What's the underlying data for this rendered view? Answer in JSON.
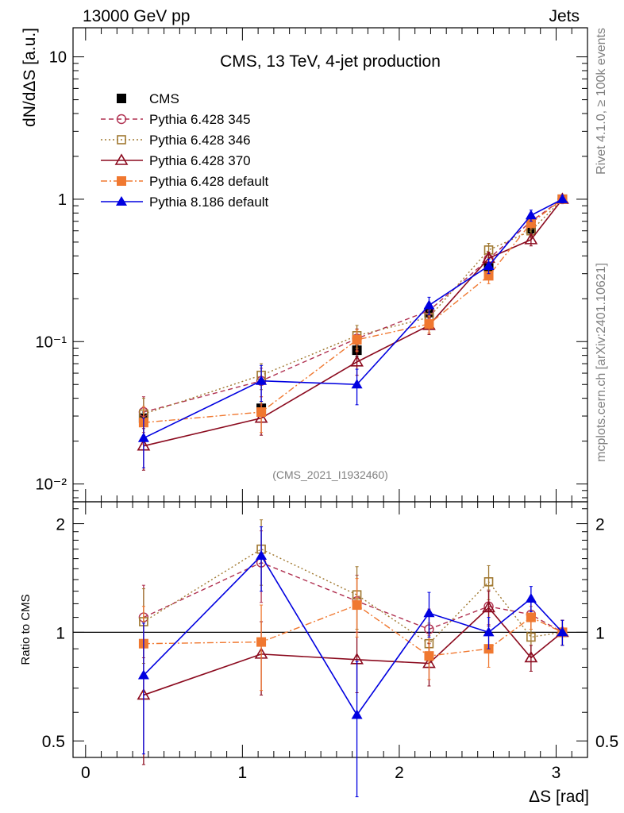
{
  "header": {
    "left": "13000 GeV pp",
    "right": "Jets",
    "side_rivet": "Rivet 4.1.0, ≥ 100k events",
    "side_mcplots": "mcplots.cern.ch [arXiv:2401.10621]"
  },
  "chart_data": [
    {
      "type": "line",
      "panel": "main",
      "title": "CMS, 13 TeV, 4-jet production",
      "analysis_id": "(CMS_2021_I1932460)",
      "ylabel": "dN/dΔS [a.u.]",
      "xlabel": "",
      "yscale": "log",
      "xlim": [
        -0.08,
        3.2
      ],
      "ylim": [
        0.0075,
        16
      ],
      "y_ticks": [
        {
          "value": 0.01,
          "label": "10⁻²"
        },
        {
          "value": 0.1,
          "label": "10⁻¹"
        },
        {
          "value": 1,
          "label": "1"
        },
        {
          "value": 10,
          "label": "10"
        }
      ],
      "x": [
        0.37,
        1.12,
        1.73,
        2.19,
        2.57,
        2.84,
        3.04
      ],
      "series": [
        {
          "name": "CMS",
          "key": "cms",
          "values": [
            0.029,
            0.034,
            0.087,
            0.16,
            0.33,
            0.62,
            1.0
          ],
          "err": [
            0.003,
            0.004,
            0.008,
            0.014,
            0.03,
            0.05,
            0.06
          ],
          "color": "#000000"
        },
        {
          "name": "Pythia 6.428 345",
          "key": "p345",
          "values": [
            0.032,
            0.053,
            0.105,
            0.165,
            0.38,
            0.7,
            1.0
          ],
          "err": [
            0.009,
            0.012,
            0.018,
            0.02,
            0.04,
            0.06,
            0.06
          ],
          "color": "#b03050"
        },
        {
          "name": "Pythia 6.428 346",
          "key": "p346",
          "values": [
            0.031,
            0.058,
            0.11,
            0.148,
            0.44,
            0.6,
            1.0
          ],
          "err": [
            0.009,
            0.012,
            0.02,
            0.018,
            0.05,
            0.06,
            0.06
          ],
          "color": "#a07830"
        },
        {
          "name": "Pythia 6.428 370",
          "key": "p370",
          "values": [
            0.0185,
            0.029,
            0.072,
            0.13,
            0.385,
            0.52,
            1.0
          ],
          "err": [
            0.006,
            0.007,
            0.014,
            0.018,
            0.04,
            0.05,
            0.06
          ],
          "color": "#8b0a1e"
        },
        {
          "name": "Pythia 6.428 default",
          "key": "p6def",
          "values": [
            0.027,
            0.032,
            0.103,
            0.133,
            0.29,
            0.68,
            1.0
          ],
          "err": [
            0.008,
            0.009,
            0.018,
            0.018,
            0.035,
            0.06,
            0.06
          ],
          "color": "#f07830"
        },
        {
          "name": "Pythia 8.186 default",
          "key": "p8def",
          "values": [
            0.021,
            0.053,
            0.05,
            0.18,
            0.34,
            0.77,
            1.0
          ],
          "err": [
            0.008,
            0.015,
            0.014,
            0.025,
            0.04,
            0.07,
            0.06
          ],
          "color": "#0000e0"
        }
      ]
    },
    {
      "type": "line",
      "panel": "ratio",
      "ylabel": "Ratio to CMS",
      "xlabel": "ΔS [rad]",
      "yscale": "log",
      "xlim": [
        -0.08,
        3.2
      ],
      "ylim": [
        0.45,
        2.3
      ],
      "y_ticks": [
        {
          "value": 0.5,
          "label": "0.5"
        },
        {
          "value": 1,
          "label": "1"
        },
        {
          "value": 2,
          "label": "2"
        }
      ],
      "x_ticks": [
        0,
        1,
        2,
        3
      ],
      "x": [
        0.37,
        1.12,
        1.73,
        2.19,
        2.57,
        2.84,
        3.04
      ],
      "series": [
        {
          "name": "Pythia 6.428 345",
          "key": "p345",
          "values": [
            1.1,
            1.56,
            1.22,
            1.02,
            1.18,
            1.12,
            1.0
          ],
          "err": [
            0.25,
            0.35,
            0.22,
            0.14,
            0.13,
            0.1,
            0.08
          ],
          "color": "#b03050"
        },
        {
          "name": "Pythia 6.428 346",
          "key": "p346",
          "values": [
            1.07,
            1.7,
            1.27,
            0.93,
            1.38,
            0.97,
            1.0
          ],
          "err": [
            0.25,
            0.35,
            0.25,
            0.13,
            0.15,
            0.1,
            0.08
          ],
          "color": "#a07830"
        },
        {
          "name": "Pythia 6.428 370",
          "key": "p370",
          "values": [
            0.67,
            0.87,
            0.84,
            0.82,
            1.17,
            0.85,
            1.0
          ],
          "err": [
            0.24,
            0.2,
            0.16,
            0.11,
            0.13,
            0.07,
            0.08
          ],
          "color": "#8b0a1e"
        },
        {
          "name": "Pythia 6.428 default",
          "key": "p6def",
          "values": [
            0.93,
            0.94,
            1.19,
            0.86,
            0.9,
            1.1,
            1.0
          ],
          "err": [
            0.25,
            0.25,
            0.22,
            0.12,
            0.1,
            0.08,
            0.08
          ],
          "color": "#f07830"
        },
        {
          "name": "Pythia 8.186 default",
          "key": "p8def",
          "values": [
            0.76,
            1.63,
            0.59,
            1.13,
            1.0,
            1.24,
            1.0
          ],
          "err": [
            0.3,
            0.33,
            0.24,
            0.16,
            0.1,
            0.1,
            0.08
          ],
          "color": "#0000e0"
        }
      ]
    }
  ]
}
